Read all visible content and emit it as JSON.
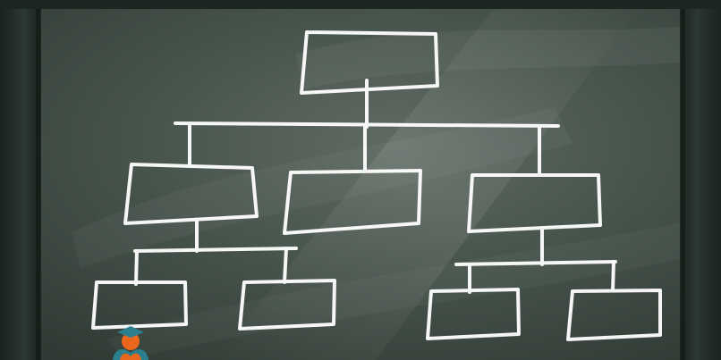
{
  "diagram": {
    "type": "org-chart",
    "colors": {
      "board": "#3b4a42",
      "frame": "#1f2923",
      "chalk": "#ffffff",
      "logo_orange": "#e8671c",
      "logo_teal": "#2b7f8f"
    },
    "boxes": [
      {
        "id": "root",
        "label": ""
      },
      {
        "id": "left-manager",
        "label": ""
      },
      {
        "id": "center-manager",
        "label": ""
      },
      {
        "id": "right-manager",
        "label": ""
      },
      {
        "id": "left-left-report",
        "label": ""
      },
      {
        "id": "left-right-report",
        "label": ""
      },
      {
        "id": "right-left-report",
        "label": ""
      },
      {
        "id": "right-right-report",
        "label": ""
      }
    ],
    "edges": [
      [
        "root",
        "left-manager"
      ],
      [
        "root",
        "center-manager"
      ],
      [
        "root",
        "right-manager"
      ],
      [
        "left-manager",
        "left-left-report"
      ],
      [
        "left-manager",
        "left-right-report"
      ],
      [
        "right-manager",
        "right-left-report"
      ],
      [
        "right-manager",
        "right-right-report"
      ]
    ]
  },
  "logo": {
    "icon": "graduate-reading-book-icon"
  }
}
